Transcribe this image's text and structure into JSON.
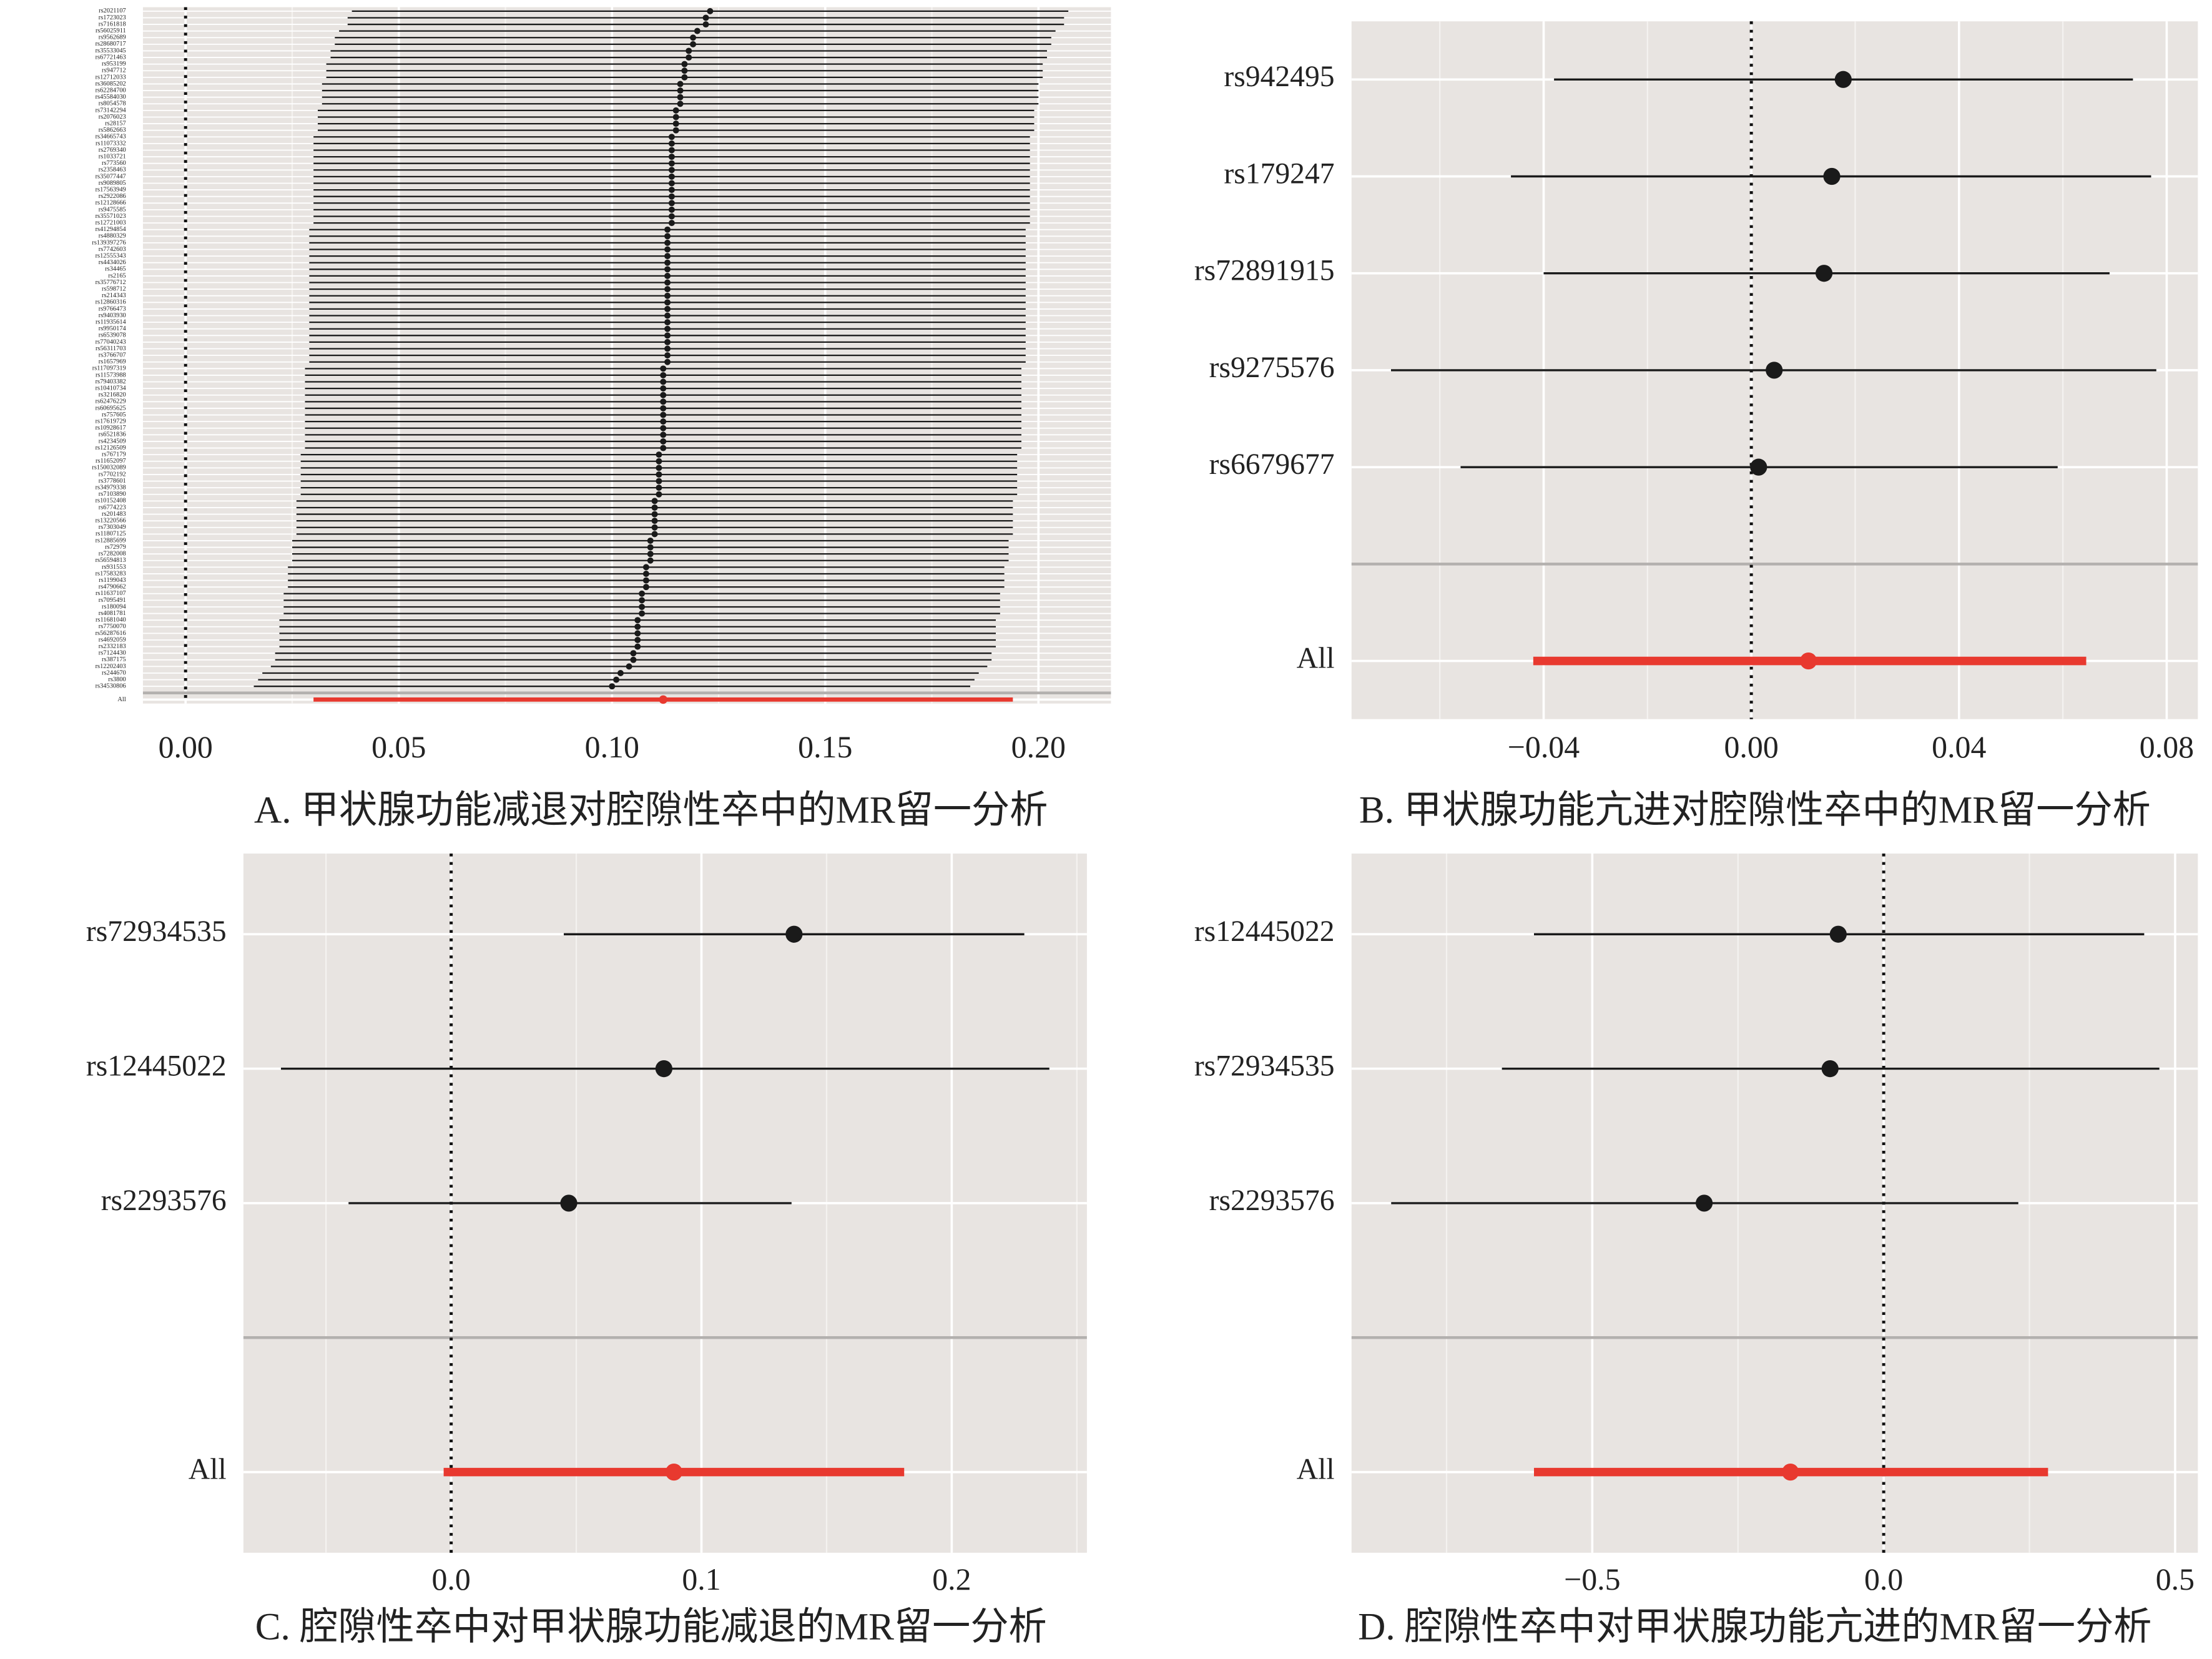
{
  "chart_data": [
    {
      "type": "forest",
      "title": "A. 甲状腺功能减退对腔隙性卒中的MR留一分析",
      "categories": [
        "rs2021107",
        "rs1723023",
        "rs7161818",
        "rs56025911",
        "rs9562689",
        "rs28680717",
        "rs35533045",
        "rs67721463",
        "rs953199",
        "rs947712",
        "rs12712033",
        "rs36085202",
        "rs62284700",
        "rs45584030",
        "rs8054578",
        "rs73142294",
        "rs2076023",
        "rs28157",
        "rs5862663",
        "rs34665743",
        "rs11073332",
        "rs2769340",
        "rs1033721",
        "rs773560",
        "rs2358463",
        "rs35077447",
        "rs9089805",
        "rs17563949",
        "rs2922086",
        "rs12128666",
        "rs9475585",
        "rs35571023",
        "rs12721003",
        "rs41294854",
        "rs4880329",
        "rs139397276",
        "rs7742603",
        "rs12555343",
        "rs4434026",
        "rs34465",
        "rs2165",
        "rs35776712",
        "rs598712",
        "rs214343",
        "rs12860316",
        "rs9766473",
        "rs9403930",
        "rs11935614",
        "rs9950174",
        "rs6539078",
        "rs77040243",
        "rs56311703",
        "rs3766707",
        "rs1657969",
        "rs117097319",
        "rs11573988",
        "rs79403382",
        "rs10410734",
        "rs3216820",
        "rs62476229",
        "rs60695625",
        "rs757605",
        "rs17619729",
        "rs10928617",
        "rs6521836",
        "rs4234509",
        "rs12126509",
        "rs767179",
        "rs11652097",
        "rs150032089",
        "rs7702192",
        "rs3778601",
        "rs34979338",
        "rs7103890",
        "rs10152408",
        "rs6774223",
        "rs201483",
        "rs13220566",
        "rs7303049",
        "rs11807125",
        "rs12885699",
        "rs72979",
        "rs7282008",
        "rs56594813",
        "rs931553",
        "rs17583283",
        "rs1199043",
        "rs4790662",
        "rs11637107",
        "rs7095491",
        "rs180094",
        "rs4081781",
        "rs11681040",
        "rs7750070",
        "rs56287616",
        "rs4692059",
        "rs2332183",
        "rs7124430",
        "rs387175",
        "rs12202403",
        "rs244670",
        "rs3800",
        "rs34530806"
      ],
      "values": [
        0.123,
        0.122,
        0.122,
        0.12,
        0.119,
        0.119,
        0.118,
        0.118,
        0.117,
        0.117,
        0.117,
        0.116,
        0.116,
        0.116,
        0.116,
        0.115,
        0.115,
        0.115,
        0.115,
        0.114,
        0.114,
        0.114,
        0.114,
        0.114,
        0.114,
        0.114,
        0.114,
        0.114,
        0.114,
        0.114,
        0.114,
        0.114,
        0.114,
        0.113,
        0.113,
        0.113,
        0.113,
        0.113,
        0.113,
        0.113,
        0.113,
        0.113,
        0.113,
        0.113,
        0.113,
        0.113,
        0.113,
        0.113,
        0.113,
        0.113,
        0.113,
        0.113,
        0.113,
        0.113,
        0.112,
        0.112,
        0.112,
        0.112,
        0.112,
        0.112,
        0.112,
        0.112,
        0.112,
        0.112,
        0.112,
        0.112,
        0.112,
        0.111,
        0.111,
        0.111,
        0.111,
        0.111,
        0.111,
        0.111,
        0.11,
        0.11,
        0.11,
        0.11,
        0.11,
        0.11,
        0.109,
        0.109,
        0.109,
        0.109,
        0.108,
        0.108,
        0.108,
        0.108,
        0.107,
        0.107,
        0.107,
        0.107,
        0.106,
        0.106,
        0.106,
        0.106,
        0.106,
        0.105,
        0.105,
        0.104,
        0.102,
        0.101,
        0.1
      ],
      "lower": [
        0.039,
        0.038,
        0.038,
        0.036,
        0.035,
        0.035,
        0.034,
        0.034,
        0.033,
        0.033,
        0.033,
        0.032,
        0.032,
        0.032,
        0.032,
        0.031,
        0.031,
        0.031,
        0.031,
        0.03,
        0.03,
        0.03,
        0.03,
        0.03,
        0.03,
        0.03,
        0.03,
        0.03,
        0.03,
        0.03,
        0.03,
        0.03,
        0.03,
        0.029,
        0.029,
        0.029,
        0.029,
        0.029,
        0.029,
        0.029,
        0.029,
        0.029,
        0.029,
        0.029,
        0.029,
        0.029,
        0.029,
        0.029,
        0.029,
        0.029,
        0.029,
        0.029,
        0.029,
        0.029,
        0.028,
        0.028,
        0.028,
        0.028,
        0.028,
        0.028,
        0.028,
        0.028,
        0.028,
        0.028,
        0.028,
        0.028,
        0.028,
        0.027,
        0.027,
        0.027,
        0.027,
        0.027,
        0.027,
        0.027,
        0.026,
        0.026,
        0.026,
        0.026,
        0.026,
        0.026,
        0.025,
        0.025,
        0.025,
        0.025,
        0.024,
        0.024,
        0.024,
        0.024,
        0.023,
        0.023,
        0.023,
        0.023,
        0.022,
        0.022,
        0.022,
        0.022,
        0.022,
        0.021,
        0.021,
        0.02,
        0.018,
        0.017,
        0.016
      ],
      "upper": [
        0.207,
        0.206,
        0.206,
        0.204,
        0.203,
        0.203,
        0.202,
        0.202,
        0.201,
        0.201,
        0.201,
        0.2,
        0.2,
        0.2,
        0.2,
        0.199,
        0.199,
        0.199,
        0.199,
        0.198,
        0.198,
        0.198,
        0.198,
        0.198,
        0.198,
        0.198,
        0.198,
        0.198,
        0.198,
        0.198,
        0.198,
        0.198,
        0.198,
        0.197,
        0.197,
        0.197,
        0.197,
        0.197,
        0.197,
        0.197,
        0.197,
        0.197,
        0.197,
        0.197,
        0.197,
        0.197,
        0.197,
        0.197,
        0.197,
        0.197,
        0.197,
        0.197,
        0.197,
        0.197,
        0.196,
        0.196,
        0.196,
        0.196,
        0.196,
        0.196,
        0.196,
        0.196,
        0.196,
        0.196,
        0.196,
        0.196,
        0.196,
        0.195,
        0.195,
        0.195,
        0.195,
        0.195,
        0.195,
        0.195,
        0.194,
        0.194,
        0.194,
        0.194,
        0.194,
        0.194,
        0.193,
        0.193,
        0.193,
        0.193,
        0.192,
        0.192,
        0.192,
        0.192,
        0.191,
        0.191,
        0.191,
        0.191,
        0.19,
        0.19,
        0.19,
        0.19,
        0.19,
        0.189,
        0.189,
        0.188,
        0.186,
        0.185,
        0.184
      ],
      "overall_label": "All",
      "overall_value": 0.112,
      "overall_lower": 0.03,
      "overall_upper": 0.194,
      "xlim": [
        -0.01,
        0.217
      ],
      "xticks": [
        {
          "value": 0,
          "label": "0.00"
        },
        {
          "value": 0.05,
          "label": "0.05"
        },
        {
          "value": 0.1,
          "label": "0.10"
        },
        {
          "value": 0.15,
          "label": "0.15"
        },
        {
          "value": 0.2,
          "label": "0.20"
        }
      ],
      "vline": 0,
      "point_color": "#1a1a1a",
      "overall_color": "#e8392f",
      "grid": true
    },
    {
      "type": "forest",
      "title": "B. 甲状腺功能亢进对腔隙性卒中的MR留一分析",
      "categories": [
        "rs942495",
        "rs179247",
        "rs72891915",
        "rs9275576",
        "rs6679677"
      ],
      "values": [
        0.0177,
        0.0155,
        0.014,
        0.0044,
        0.0014
      ],
      "lower": [
        -0.038,
        -0.0463,
        -0.04,
        -0.0694,
        -0.056
      ],
      "upper": [
        0.0735,
        0.077,
        0.069,
        0.078,
        0.059
      ],
      "overall_label": "All",
      "overall_value": 0.011,
      "overall_lower": -0.042,
      "overall_upper": 0.0645,
      "xlim": [
        -0.077,
        0.086
      ],
      "xticks": [
        {
          "value": -0.04,
          "label": "−0.04"
        },
        {
          "value": 0,
          "label": "0.00"
        },
        {
          "value": 0.04,
          "label": "0.04"
        },
        {
          "value": 0.08,
          "label": "0.08"
        }
      ],
      "vline": 0,
      "point_color": "#1a1a1a",
      "overall_color": "#e8392f",
      "grid": true
    },
    {
      "type": "forest",
      "title": "C. 腔隙性卒中对甲状腺功能减退的MR留一分析",
      "categories": [
        "rs72934535",
        "rs12445022",
        "rs2293576"
      ],
      "values": [
        0.137,
        0.085,
        0.047
      ],
      "lower": [
        0.045,
        -0.068,
        -0.041
      ],
      "upper": [
        0.229,
        0.239,
        0.136
      ],
      "overall_label": "All",
      "overall_value": 0.089,
      "overall_lower": -0.003,
      "overall_upper": 0.181,
      "xlim": [
        -0.083,
        0.254
      ],
      "xticks": [
        {
          "value": 0,
          "label": "0.0"
        },
        0.1,
        0.2
      ],
      "vline": 0,
      "point_color": "#1a1a1a",
      "overall_color": "#e8392f",
      "grid": true
    },
    {
      "type": "forest",
      "title": "D. 腔隙性卒中对甲状腺功能亢进的MR留一分析",
      "categories": [
        "rs12445022",
        "rs72934535",
        "rs2293576"
      ],
      "values": [
        -0.078,
        -0.092,
        -0.308
      ],
      "lower": [
        -0.6,
        -0.655,
        -0.845
      ],
      "upper": [
        0.447,
        0.473,
        0.231
      ],
      "overall_label": "All",
      "overall_value": -0.16,
      "overall_lower": -0.6,
      "overall_upper": 0.282,
      "xlim": [
        -0.913,
        0.539
      ],
      "xticks": [
        {
          "value": -0.5,
          "label": "−0.5"
        },
        {
          "value": 0,
          "label": "0.0"
        },
        0.5
      ],
      "vline": 0,
      "point_color": "#1a1a1a",
      "overall_color": "#e8392f",
      "grid": true
    }
  ]
}
